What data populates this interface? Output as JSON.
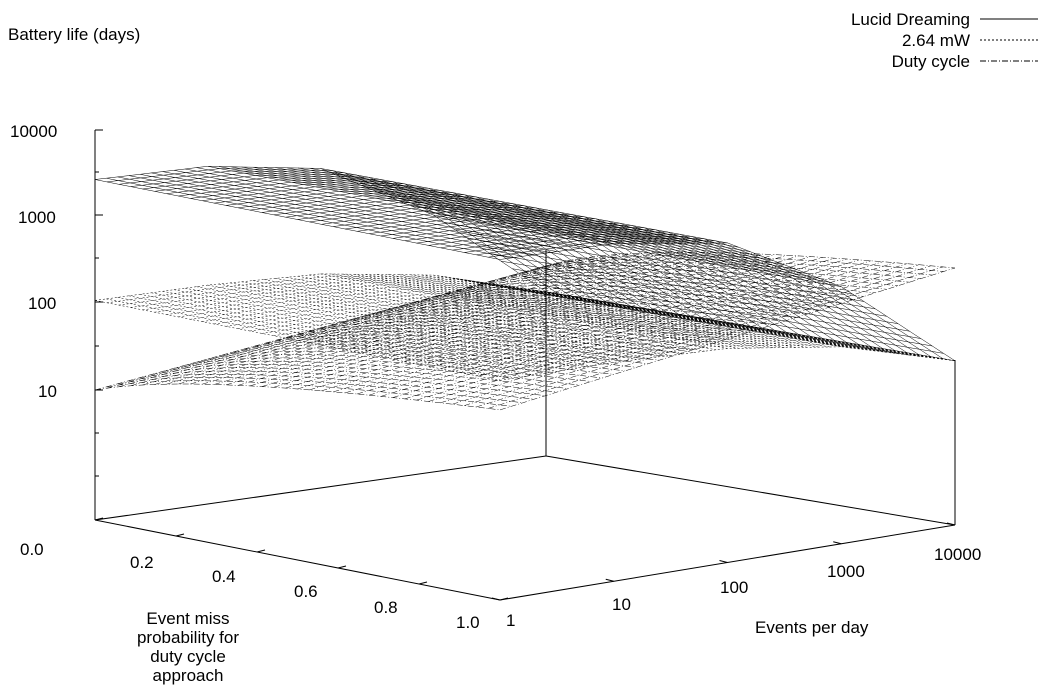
{
  "chart_data": {
    "type": "surface3d",
    "zlabel": "Battery life (days)",
    "xlabel": "Events per day",
    "ylabel_lines": [
      "Event miss",
      "probability for",
      "duty cycle",
      "approach"
    ],
    "z_scale": "log",
    "zlim": [
      1,
      10000
    ],
    "z_ticks": [
      "10000",
      "1000",
      "100",
      "10"
    ],
    "x_scale": "log",
    "xlim": [
      1,
      10000
    ],
    "x_ticks": [
      "1",
      "10",
      "100",
      "1000",
      "10000"
    ],
    "ylim": [
      0.0,
      1.0
    ],
    "y_ticks": [
      "0.0",
      "0.2",
      "0.4",
      "0.6",
      "0.8",
      "1.0"
    ],
    "legend_position": "top-right",
    "series": [
      {
        "name": "Lucid Dreaming",
        "line_style": "solid",
        "x_events_per_day": [
          1,
          10,
          100,
          1000,
          10000
        ],
        "battery_days": [
          2800,
          2600,
          1600,
          300,
          25
        ],
        "varies_with_miss_probability": false
      },
      {
        "name": "2.64 mW",
        "line_style": "dotted",
        "x_events_per_day": [
          1,
          10,
          100,
          1000,
          10000
        ],
        "battery_days": [
          110,
          108,
          95,
          60,
          25
        ],
        "varies_with_miss_probability": false
      },
      {
        "name": "Duty cycle",
        "line_style": "dash-dot",
        "miss_probability": [
          0.0,
          1.0
        ],
        "battery_days_at_min_events": [
          10,
          50
        ],
        "battery_days_at_max_events": [
          50,
          300
        ]
      }
    ]
  }
}
